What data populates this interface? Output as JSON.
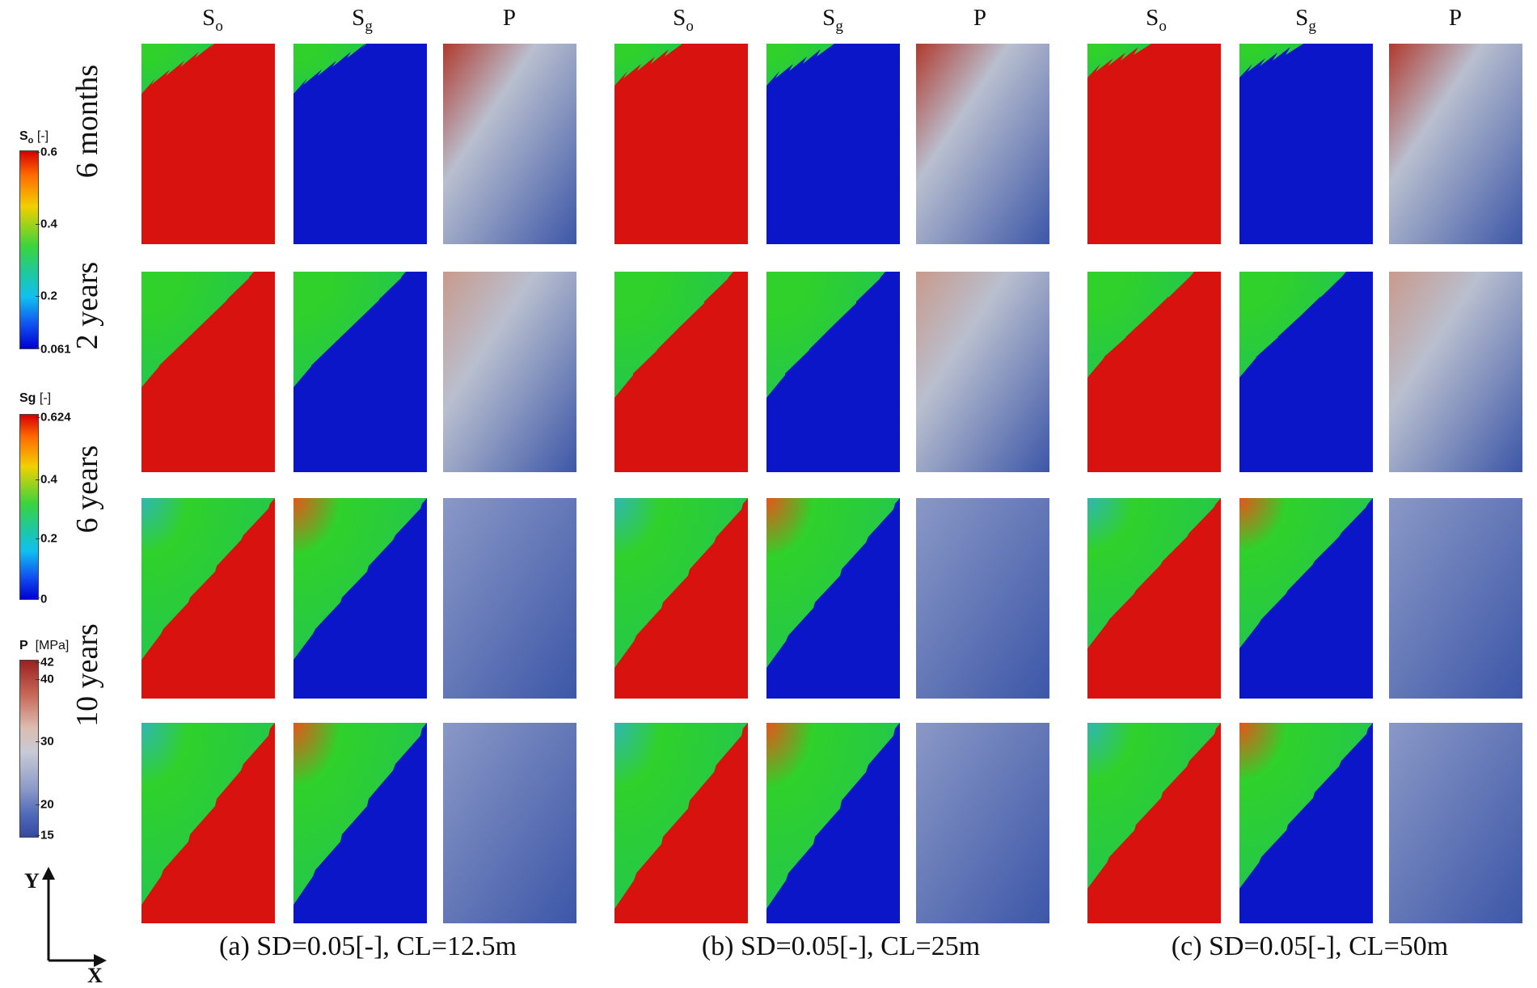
{
  "column_headers": [
    {
      "main": "S",
      "sub": "o"
    },
    {
      "main": "S",
      "sub": "g"
    },
    {
      "main": "P",
      "sub": ""
    },
    {
      "main": "S",
      "sub": "o"
    },
    {
      "main": "S",
      "sub": "g"
    },
    {
      "main": "P",
      "sub": ""
    },
    {
      "main": "S",
      "sub": "o"
    },
    {
      "main": "S",
      "sub": "g"
    },
    {
      "main": "P",
      "sub": ""
    }
  ],
  "row_labels": [
    "6 months",
    "2 years",
    "6 years",
    "10 years"
  ],
  "captions": [
    "(a) SD=0.05[-], CL=12.5m",
    "(b) SD=0.05[-], CL=25m",
    "(c) SD=0.05[-], CL=50m"
  ],
  "colorbars": {
    "so": {
      "symbol": "S",
      "sub": "o",
      "unit": "[-]",
      "ticks": [
        "0.6",
        "0.4",
        "0.2",
        "0.061"
      ]
    },
    "sg": {
      "symbol": "Sg",
      "unit": "[-]",
      "ticks": [
        "0.624",
        "0.4",
        "0.2",
        "0"
      ]
    },
    "p": {
      "symbol": "P",
      "unit": "[MPa]",
      "ticks": [
        "42",
        "40",
        "30",
        "20",
        "15"
      ]
    }
  },
  "axes": {
    "y": "Y",
    "x": "X"
  },
  "colors": {
    "oil_red": "#d7120f",
    "green": "#2fd12a",
    "blue": "#0a16c8",
    "pressure_high": "#b03a2e",
    "pressure_mid": "#b9bfcf",
    "pressure_low": "#3d57a8"
  }
}
